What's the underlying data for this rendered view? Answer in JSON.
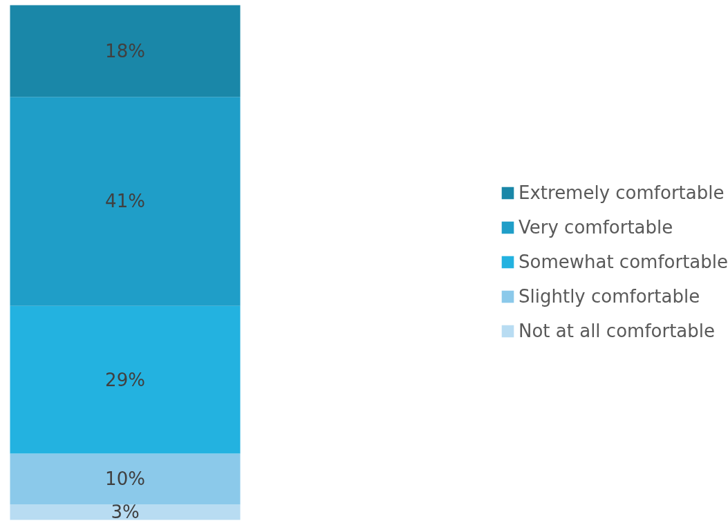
{
  "chart_data": {
    "type": "bar",
    "stacked": true,
    "categories": [
      null
    ],
    "legend": "right",
    "series": [
      {
        "name": "Not at all comfortable",
        "color": "#b8dcf2",
        "values": [
          3
        ],
        "value_labels": [
          "3%"
        ]
      },
      {
        "name": "Slightly comfortable",
        "color": "#8bc9ea",
        "values": [
          10
        ],
        "value_labels": [
          "10%"
        ]
      },
      {
        "name": "Somewhat comfortable",
        "color": "#23b2e0",
        "values": [
          29
        ],
        "value_labels": [
          "29%"
        ]
      },
      {
        "name": "Very comfortable",
        "color": "#1f9ec8",
        "values": [
          41
        ],
        "value_labels": [
          "41%"
        ]
      },
      {
        "name": "Extremely comfortable",
        "color": "#1a87a8",
        "values": [
          18
        ],
        "value_labels": [
          "18%"
        ]
      }
    ]
  }
}
